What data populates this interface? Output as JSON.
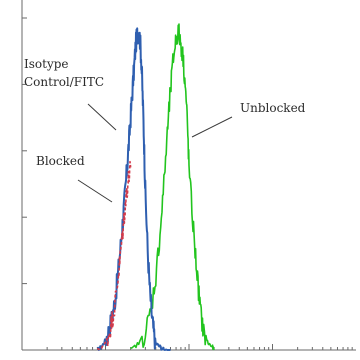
{
  "chart_data": {
    "type": "line",
    "title": "",
    "xlabel": "",
    "ylabel": "",
    "x_scale": "log",
    "xlim": [
      1,
      10000
    ],
    "ylim": [
      0,
      100
    ],
    "grid": false,
    "legend": "none",
    "series": [
      {
        "name": "Isotype Control/FITC",
        "color": "#2f5fb0",
        "x": [
          8,
          9,
          10,
          11,
          12,
          13,
          14,
          15,
          16,
          17,
          18,
          19,
          20,
          21,
          22,
          23,
          24,
          25,
          26,
          27,
          28,
          29,
          30,
          32,
          34,
          36,
          38,
          40,
          45,
          50,
          60
        ],
        "y": [
          0,
          1,
          3,
          6,
          10,
          15,
          22,
          30,
          38,
          46,
          54,
          62,
          70,
          78,
          85,
          92,
          95,
          96,
          93,
          86,
          75,
          62,
          48,
          30,
          18,
          10,
          5,
          2,
          1,
          0,
          0
        ]
      },
      {
        "name": "Blocked",
        "color": "#d23a4a",
        "x": [
          8,
          10,
          11,
          12,
          13,
          14,
          15,
          16,
          17,
          18,
          19,
          20
        ],
        "y": [
          0,
          2,
          5,
          9,
          14,
          21,
          28,
          35,
          42,
          48,
          52,
          55
        ]
      },
      {
        "name": "Unblocked",
        "color": "#22c41e",
        "x": [
          20,
          25,
          30,
          35,
          40,
          45,
          50,
          55,
          60,
          65,
          70,
          75,
          80,
          85,
          90,
          95,
          100,
          110,
          120,
          130,
          140,
          150,
          170,
          190,
          200
        ],
        "y": [
          0,
          2,
          5,
          12,
          22,
          35,
          50,
          65,
          78,
          88,
          94,
          96,
          92,
          88,
          80,
          70,
          55,
          40,
          28,
          18,
          10,
          5,
          2,
          1,
          0
        ]
      }
    ],
    "annotations": [
      {
        "text_lines": [
          "Isotype",
          "Control/FITC"
        ]
      },
      {
        "text_lines": [
          "Blocked"
        ]
      },
      {
        "text_lines": [
          "Unblocked"
        ]
      }
    ]
  }
}
